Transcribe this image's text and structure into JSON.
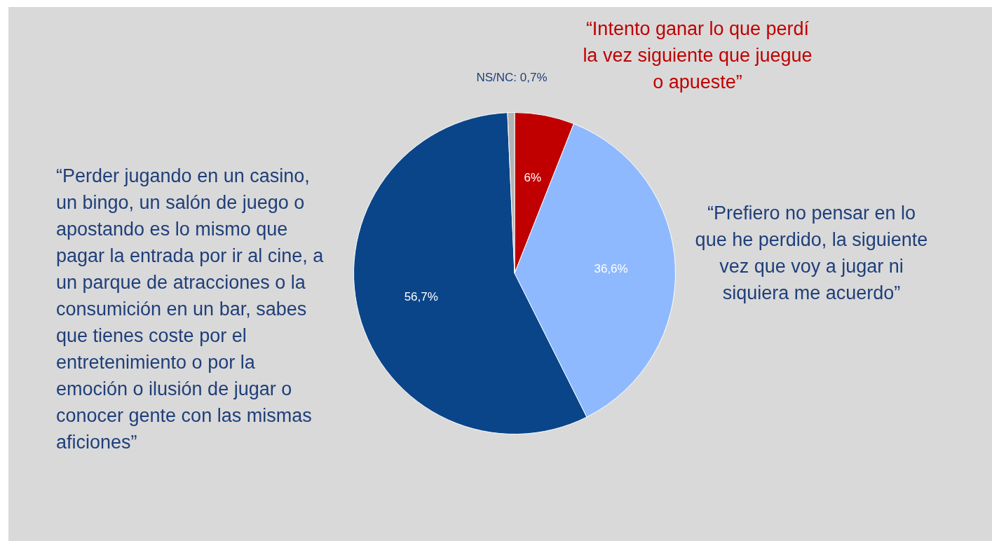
{
  "chart_data": {
    "type": "pie",
    "categories": [
      "“Intento ganar lo que perdí la vez siguiente que juegue o apueste”",
      "“Prefiero no pensar en lo que he perdido, la siguiente vez que voy a jugar ni siquiera me acuerdo”",
      "“Perder jugando en un casino, un bingo, un salón de juego o apostando es lo mismo que pagar la entrada por ir al cine, a un parque de atracciones o la consumición en un bar, sabes que tienes coste por el entretenimiento o por la emoción o ilusión de jugar o conocer gente con las mismas aficiones”",
      "NS/NC"
    ],
    "values": [
      6,
      36.6,
      56.7,
      0.7
    ],
    "colors": [
      "#c00000",
      "#8fb9ff",
      "#0a4589",
      "#b3b3b3"
    ],
    "value_labels": [
      "6%",
      "36,6%",
      "56,7%",
      "0,7%"
    ],
    "legend": false
  }
}
